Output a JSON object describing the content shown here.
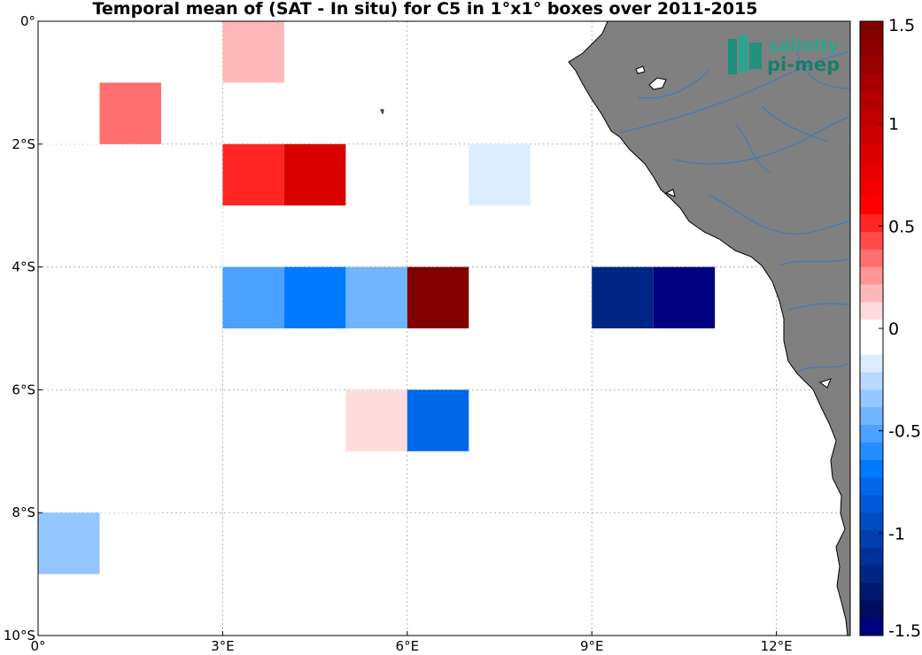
{
  "title": "Temporal mean of (SAT - In situ) for C5 in 1°x1° boxes over 2011-2015",
  "watermark": {
    "line1": "salinity",
    "line2": "pi-mep"
  },
  "map": {
    "lon_range": [
      0,
      13.2
    ],
    "lat_range": [
      -10,
      0
    ],
    "x_ticks": [
      {
        "value": 0,
        "label": "0°"
      },
      {
        "value": 3,
        "label": "3°E"
      },
      {
        "value": 6,
        "label": "6°E"
      },
      {
        "value": 9,
        "label": "9°E"
      },
      {
        "value": 12,
        "label": "12°E"
      }
    ],
    "y_ticks": [
      {
        "value": 0,
        "label": "0°"
      },
      {
        "value": -2,
        "label": "2°S"
      },
      {
        "value": -4,
        "label": "4°S"
      },
      {
        "value": -6,
        "label": "6°S"
      },
      {
        "value": -8,
        "label": "8°S"
      },
      {
        "value": -10,
        "label": "10°S"
      }
    ],
    "grid": true,
    "land_color": "#808080",
    "river_color": "#3a78c0"
  },
  "chart_data": {
    "type": "heatmap",
    "title": "Temporal mean of (SAT - In situ) for C5 in 1°x1° boxes over 2011-2015",
    "cells": [
      {
        "lon": 3,
        "lat": -1,
        "value": 0.15
      },
      {
        "lon": 0,
        "lat": -2,
        "value": -0.1
      },
      {
        "lon": 1,
        "lat": -2,
        "value": 0.35
      },
      {
        "lon": 3,
        "lat": -3,
        "value": 0.55
      },
      {
        "lon": 4,
        "lat": -3,
        "value": 0.85
      },
      {
        "lon": 7,
        "lat": -3,
        "value": -0.2
      },
      {
        "lon": 3,
        "lat": -4,
        "value": -0.1
      },
      {
        "lon": 3,
        "lat": -5,
        "value": -0.5
      },
      {
        "lon": 4,
        "lat": -5,
        "value": -0.65
      },
      {
        "lon": 5,
        "lat": -5,
        "value": -0.45
      },
      {
        "lon": 6,
        "lat": -5,
        "value": 1.45
      },
      {
        "lon": 9,
        "lat": -5,
        "value": -1.2
      },
      {
        "lon": 10,
        "lat": -5,
        "value": -1.45
      },
      {
        "lon": 5,
        "lat": -7,
        "value": 0.1
      },
      {
        "lon": 6,
        "lat": -7,
        "value": -0.75
      },
      {
        "lon": 1,
        "lat": -8,
        "value": -0.1
      },
      {
        "lon": 0,
        "lat": -9,
        "value": -0.35
      }
    ],
    "colorbar": {
      "range": [
        -1.5,
        1.5
      ],
      "ticks": [
        {
          "value": 1.5,
          "label": "1.5"
        },
        {
          "value": 1,
          "label": "1"
        },
        {
          "value": 0.5,
          "label": "0.5"
        },
        {
          "value": 0,
          "label": "0"
        },
        {
          "value": -0.5,
          "label": "-0.5"
        },
        {
          "value": -1,
          "label": "-1"
        },
        {
          "value": -1.5,
          "label": "-1.5"
        }
      ],
      "colors_top_to_bottom": [
        "#800000",
        "#8c0000",
        "#990000",
        "#a60000",
        "#b30000",
        "#c00000",
        "#cc0000",
        "#d90000",
        "#e60000",
        "#f20000",
        "#ff0000",
        "#ff2525",
        "#ff4a4a",
        "#ff6f6f",
        "#ff9494",
        "#ffb8b8",
        "#ffdcdc",
        "#ffffff",
        "#ffffff",
        "#dcecff",
        "#b8d9ff",
        "#94c6ff",
        "#6fb4ff",
        "#4aa1ff",
        "#258eff",
        "#007bff",
        "#0067eb",
        "#0059d6",
        "#004cc2",
        "#003fad",
        "#003399",
        "#002685",
        "#001970",
        "#000d5c",
        "#000080"
      ]
    }
  }
}
